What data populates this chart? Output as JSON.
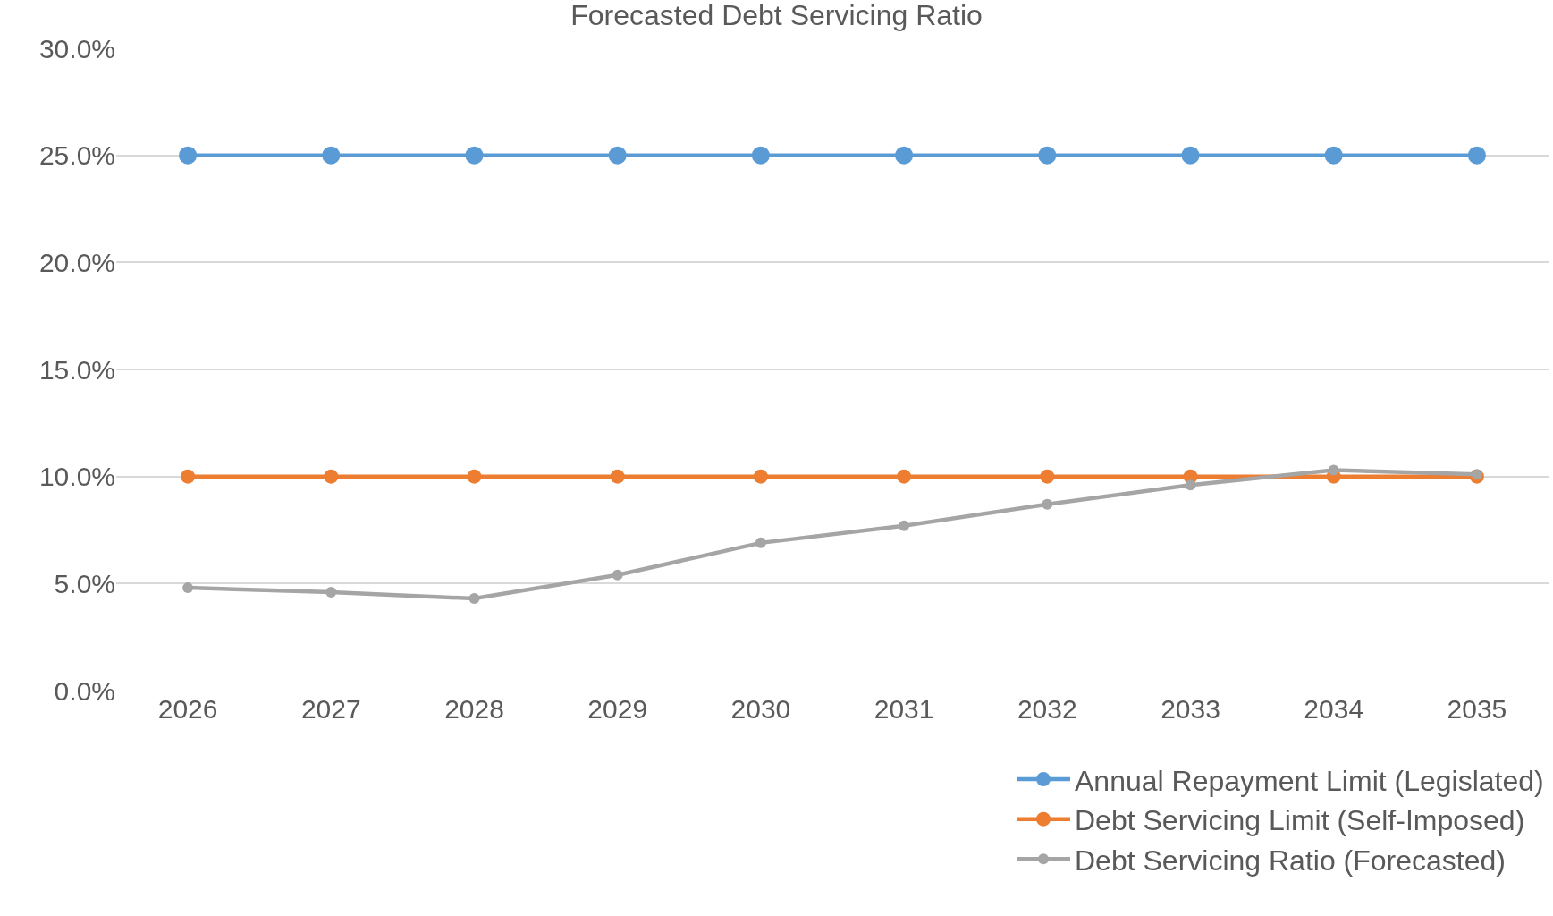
{
  "chart_data": {
    "type": "line",
    "title": "Forecasted Debt Servicing Ratio",
    "categories": [
      "2026",
      "2027",
      "2028",
      "2029",
      "2030",
      "2031",
      "2032",
      "2033",
      "2034",
      "2035"
    ],
    "series": [
      {
        "name": "Annual Repayment Limit (Legislated)",
        "color": "#5b9bd5",
        "values": [
          25,
          25,
          25,
          25,
          25,
          25,
          25,
          25,
          25,
          25
        ]
      },
      {
        "name": "Debt Servicing Limit (Self-Imposed)",
        "color": "#ed7d31",
        "values": [
          10,
          10,
          10,
          10,
          10,
          10,
          10,
          10,
          10,
          10
        ]
      },
      {
        "name": "Debt Servicing Ratio (Forecasted)",
        "color": "#a5a5a5",
        "values": [
          4.8,
          4.6,
          4.3,
          5.4,
          6.9,
          7.7,
          8.7,
          9.6,
          10.3,
          10.1
        ]
      }
    ],
    "ylim": [
      0,
      30
    ],
    "yticks": [
      {
        "value": 0,
        "label": "0.0%"
      },
      {
        "value": 5,
        "label": "5.0%"
      },
      {
        "value": 10,
        "label": "10.0%"
      },
      {
        "value": 15,
        "label": "15.0%"
      },
      {
        "value": 20,
        "label": "20.0%"
      },
      {
        "value": 25,
        "label": "25.0%"
      },
      {
        "value": 30,
        "label": "30.0%"
      }
    ],
    "grid": "y",
    "legend": "bottom right",
    "marker": "circle",
    "line_style": "solid"
  }
}
